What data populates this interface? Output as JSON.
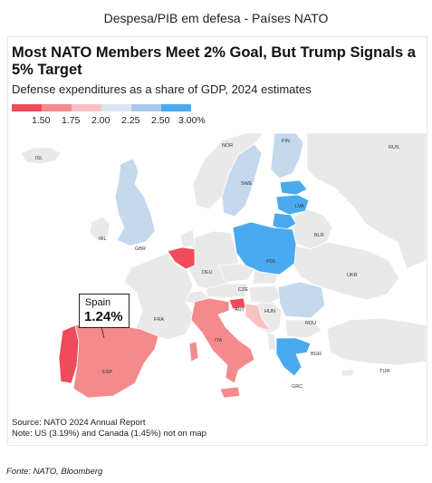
{
  "page": {
    "caption": "Despesa/PIB em defesa - Países NATO",
    "footer": "Fonte: NATO, Bloomberg"
  },
  "figure": {
    "title": "Most NATO Members Meet 2% Goal, But Trump Signals a 5% Target",
    "subtitle": "Defense expenditures as a share of GDP, 2024 estimates",
    "source": "Source: NATO 2024 Annual Report",
    "note": "Note: US (3.19%) and Canada (1.45%) not on map"
  },
  "legend": {
    "labels": [
      "1.50",
      "1.75",
      "2.00",
      "2.25",
      "2.50",
      "3.00%"
    ],
    "colors": [
      "#ee4c5a",
      "#f48a8c",
      "#f9c2c2",
      "#dce6f2",
      "#a9c9ea",
      "#4aaaf0"
    ]
  },
  "callout": {
    "country": "Spain",
    "value": "1.24%"
  },
  "map_labels": {
    "NOR": "NOR",
    "SWE": "SWE",
    "FIN": "FIN",
    "RUS": "RUS",
    "ISL": "ISL",
    "LVA": "LVA",
    "BLR": "BLR",
    "IRL": "IRL",
    "GBR": "GBR",
    "POL": "POL",
    "DEU": "DEU",
    "CZE": "CZE",
    "UKR": "UKR",
    "FRA": "FRA",
    "AUT": "AUT",
    "HUN": "HUN",
    "ROU": "ROU",
    "ITA": "ITA",
    "BGR": "BGR",
    "ESP": "ESP",
    "TUR": "TUR",
    "GRC": "GRC"
  },
  "colors": {
    "non_member": "#e9e9e9",
    "border": "#ffffff"
  }
}
